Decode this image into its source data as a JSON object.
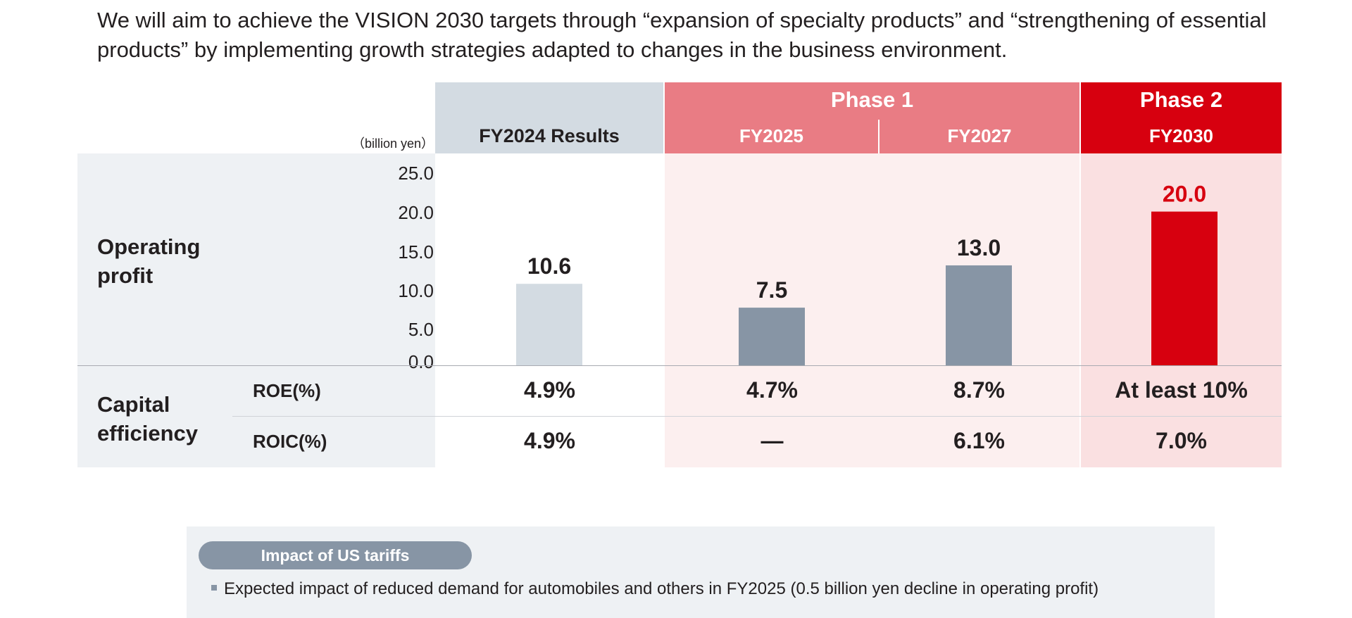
{
  "intro_text": "We will aim to achieve the VISION 2030 targets through “expansion of specialty products” and “strengthening of essential products” by implementing growth strategies adapted to changes in the business environment.",
  "header": {
    "unit": "（billion yen）",
    "fy2024": "FY2024 Results",
    "phase1": "Phase 1",
    "phase2": "Phase 2",
    "fy2025": "FY2025",
    "fy2027": "FY2027",
    "fy2030": "FY2030"
  },
  "rows": {
    "operating_profit": "Operating profit",
    "capital_efficiency": "Capital efficiency",
    "roe_label": "ROE(%)",
    "roic_label": "ROIC(%)"
  },
  "chart_data": {
    "type": "bar",
    "categories": [
      "FY2024 Results",
      "FY2025",
      "FY2027",
      "FY2030"
    ],
    "values": [
      10.6,
      7.5,
      13.0,
      20.0
    ],
    "value_labels": [
      "10.6",
      "7.5",
      "13.0",
      "20.0"
    ],
    "ylabel": "（billion yen）",
    "ylim": [
      0,
      25
    ],
    "yticks": [
      "25.0",
      "20.0",
      "15.0",
      "10.0",
      "5.0",
      "0.0"
    ],
    "bar_colors": [
      "#d3dbe2",
      "#8795a5",
      "#8795a5",
      "#d7000f"
    ],
    "label_colors": [
      "#231f20",
      "#231f20",
      "#231f20",
      "#d7000f"
    ]
  },
  "metrics": {
    "roe": [
      "4.9%",
      "4.7%",
      "8.7%",
      "At least 10%"
    ],
    "roic": [
      "4.9%",
      "—",
      "6.1%",
      "7.0%"
    ]
  },
  "tariffs": {
    "title": "Impact of US tariffs",
    "note": "Expected impact of reduced demand for automobiles and others in FY2025 (0.5 billion yen decline in operating profit)"
  },
  "colors": {
    "results_header": "#d3dbe2",
    "phase1_header": "#e97c84",
    "phase2_header": "#d7000f",
    "phase1_body": "#fcefef",
    "phase2_body": "#fae0e1",
    "label_bg": "#eef1f4",
    "bar_gray": "#8795a5"
  }
}
